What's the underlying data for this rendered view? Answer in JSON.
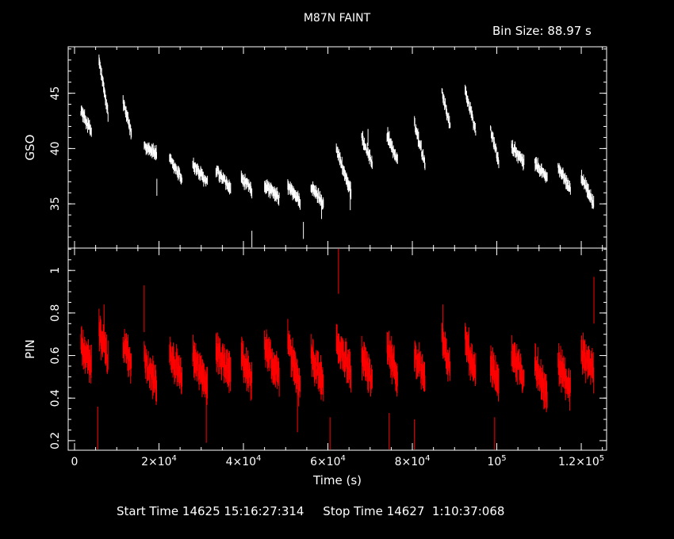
{
  "plot_title": "M87N FAINT",
  "bin_size_label": "Bin Size: 88.97 s",
  "footer": {
    "start_label": "Start Time",
    "start_value": "14625 15:16:27:314",
    "stop_label": "Stop Time",
    "stop_value": "14627  1:10:37:068"
  },
  "colors": {
    "background": "#000000",
    "axes": "#ffffff",
    "gso": "#ffffff",
    "pin": "#ff0000"
  },
  "chart_data": [
    {
      "type": "scatter",
      "panel": "top",
      "ylabel": "GSO",
      "xlim": [
        -1500,
        126000
      ],
      "ylim": [
        31,
        49.2
      ],
      "yticks": [
        35,
        40,
        45
      ],
      "show_x_ticklabels": false,
      "color": "#ffffff",
      "series": [
        {
          "segments": [
            {
              "x": [
                1500,
                4000
              ],
              "y": [
                43.5,
                41.5
              ]
            },
            {
              "x": [
                5800,
                8000
              ],
              "y": [
                48.0,
                43.0
              ]
            },
            {
              "x": [
                11500,
                13500
              ],
              "y": [
                44.2,
                41.3
              ]
            },
            {
              "x": [
                16500,
                19500
              ],
              "y": [
                40.3,
                39.5
              ]
            },
            {
              "x": [
                22500,
                25500
              ],
              "y": [
                39.0,
                37.2
              ]
            },
            {
              "x": [
                28000,
                31500
              ],
              "y": [
                38.6,
                36.8
              ]
            },
            {
              "x": [
                33500,
                37000
              ],
              "y": [
                38.0,
                36.3
              ]
            },
            {
              "x": [
                39500,
                42000
              ],
              "y": [
                37.3,
                36.2
              ]
            },
            {
              "x": [
                45000,
                48500
              ],
              "y": [
                36.7,
                35.5
              ]
            },
            {
              "x": [
                50500,
                53500
              ],
              "y": [
                36.6,
                35.2
              ]
            },
            {
              "x": [
                56000,
                59000
              ],
              "y": [
                36.5,
                35.1
              ]
            },
            {
              "x": [
                62000,
                65500
              ],
              "y": [
                40.0,
                36.0
              ]
            },
            {
              "x": [
                68000,
                70500
              ],
              "y": [
                41.0,
                38.7
              ]
            },
            {
              "x": [
                74000,
                76500
              ],
              "y": [
                41.3,
                38.8
              ]
            },
            {
              "x": [
                80500,
                83000
              ],
              "y": [
                42.2,
                38.7
              ]
            },
            {
              "x": [
                87000,
                89000
              ],
              "y": [
                45.2,
                41.9
              ]
            },
            {
              "x": [
                92500,
                95000
              ],
              "y": [
                45.3,
                41.6
              ]
            },
            {
              "x": [
                98500,
                100500
              ],
              "y": [
                41.8,
                38.7
              ]
            },
            {
              "x": [
                103500,
                106500
              ],
              "y": [
                40.2,
                38.6
              ]
            },
            {
              "x": [
                109000,
                112000
              ],
              "y": [
                38.7,
                37.3
              ]
            },
            {
              "x": [
                114500,
                117500
              ],
              "y": [
                38.2,
                36.4
              ]
            },
            {
              "x": [
                120000,
                123000
              ],
              "y": [
                37.5,
                35.0
              ]
            }
          ],
          "outliers": [
            {
              "x": 42000,
              "y": 31.8
            },
            {
              "x": 54200,
              "y": 32.6
            },
            {
              "x": 19500,
              "y": 36.5
            },
            {
              "x": 65300,
              "y": 35.2
            },
            {
              "x": 58500,
              "y": 34.4
            },
            {
              "x": 69500,
              "y": 41.0
            }
          ]
        }
      ]
    },
    {
      "type": "scatter",
      "panel": "bottom",
      "ylabel": "PIN",
      "xlabel": "Time (s)",
      "xlim": [
        -1500,
        126000
      ],
      "ylim": [
        0.155,
        1.105
      ],
      "yticks": [
        0.2,
        0.4,
        0.6,
        0.8,
        1
      ],
      "xticks": [
        0,
        20000,
        40000,
        60000,
        80000,
        100000,
        120000
      ],
      "xtick_labels": [
        {
          "mantissa": "0",
          "exponent": ""
        },
        {
          "mantissa": "2×10",
          "exponent": "4"
        },
        {
          "mantissa": "4×10",
          "exponent": "4"
        },
        {
          "mantissa": "6×10",
          "exponent": "4"
        },
        {
          "mantissa": "8×10",
          "exponent": "4"
        },
        {
          "mantissa": "10",
          "exponent": "5"
        },
        {
          "mantissa": "1.2×10",
          "exponent": "5"
        }
      ],
      "color": "#ff0000",
      "series": [
        {
          "segments": [
            {
              "x": [
                1500,
                4000
              ],
              "y": [
                0.66,
                0.55
              ]
            },
            {
              "x": [
                5800,
                8000
              ],
              "y": [
                0.72,
                0.58
              ]
            },
            {
              "x": [
                11500,
                13500
              ],
              "y": [
                0.65,
                0.57
              ]
            },
            {
              "x": [
                16500,
                19500
              ],
              "y": [
                0.58,
                0.47
              ]
            },
            {
              "x": [
                22500,
                25500
              ],
              "y": [
                0.62,
                0.48
              ]
            },
            {
              "x": [
                28000,
                31500
              ],
              "y": [
                0.6,
                0.45
              ]
            },
            {
              "x": [
                33500,
                37000
              ],
              "y": [
                0.63,
                0.5
              ]
            },
            {
              "x": [
                39500,
                42000
              ],
              "y": [
                0.6,
                0.48
              ]
            },
            {
              "x": [
                45000,
                48500
              ],
              "y": [
                0.65,
                0.49
              ]
            },
            {
              "x": [
                50500,
                53500
              ],
              "y": [
                0.66,
                0.45
              ]
            },
            {
              "x": [
                56000,
                59000
              ],
              "y": [
                0.6,
                0.47
              ]
            },
            {
              "x": [
                62000,
                65500
              ],
              "y": [
                0.66,
                0.52
              ]
            },
            {
              "x": [
                68000,
                70500
              ],
              "y": [
                0.6,
                0.48
              ]
            },
            {
              "x": [
                74000,
                76500
              ],
              "y": [
                0.64,
                0.5
              ]
            },
            {
              "x": [
                80500,
                83000
              ],
              "y": [
                0.6,
                0.48
              ]
            },
            {
              "x": [
                87000,
                89000
              ],
              "y": [
                0.68,
                0.52
              ]
            },
            {
              "x": [
                92500,
                95000
              ],
              "y": [
                0.68,
                0.5
              ]
            },
            {
              "x": [
                98500,
                100500
              ],
              "y": [
                0.58,
                0.46
              ]
            },
            {
              "x": [
                103500,
                106500
              ],
              "y": [
                0.62,
                0.5
              ]
            },
            {
              "x": [
                109000,
                112000
              ],
              "y": [
                0.56,
                0.4
              ]
            },
            {
              "x": [
                114500,
                117500
              ],
              "y": [
                0.56,
                0.44
              ]
            },
            {
              "x": [
                120000,
                123000
              ],
              "y": [
                0.62,
                0.52
              ]
            }
          ],
          "outliers": [
            {
              "x": 62500,
              "y": 1.0
            },
            {
              "x": 123000,
              "y": 0.86
            },
            {
              "x": 87200,
              "y": 0.73
            },
            {
              "x": 7000,
              "y": 0.73
            },
            {
              "x": 16500,
              "y": 0.82
            },
            {
              "x": 5500,
              "y": 0.25
            },
            {
              "x": 60500,
              "y": 0.2
            },
            {
              "x": 74500,
              "y": 0.22
            },
            {
              "x": 80500,
              "y": 0.19
            },
            {
              "x": 99500,
              "y": 0.2
            },
            {
              "x": 31200,
              "y": 0.3
            },
            {
              "x": 52800,
              "y": 0.35
            }
          ]
        }
      ]
    }
  ]
}
